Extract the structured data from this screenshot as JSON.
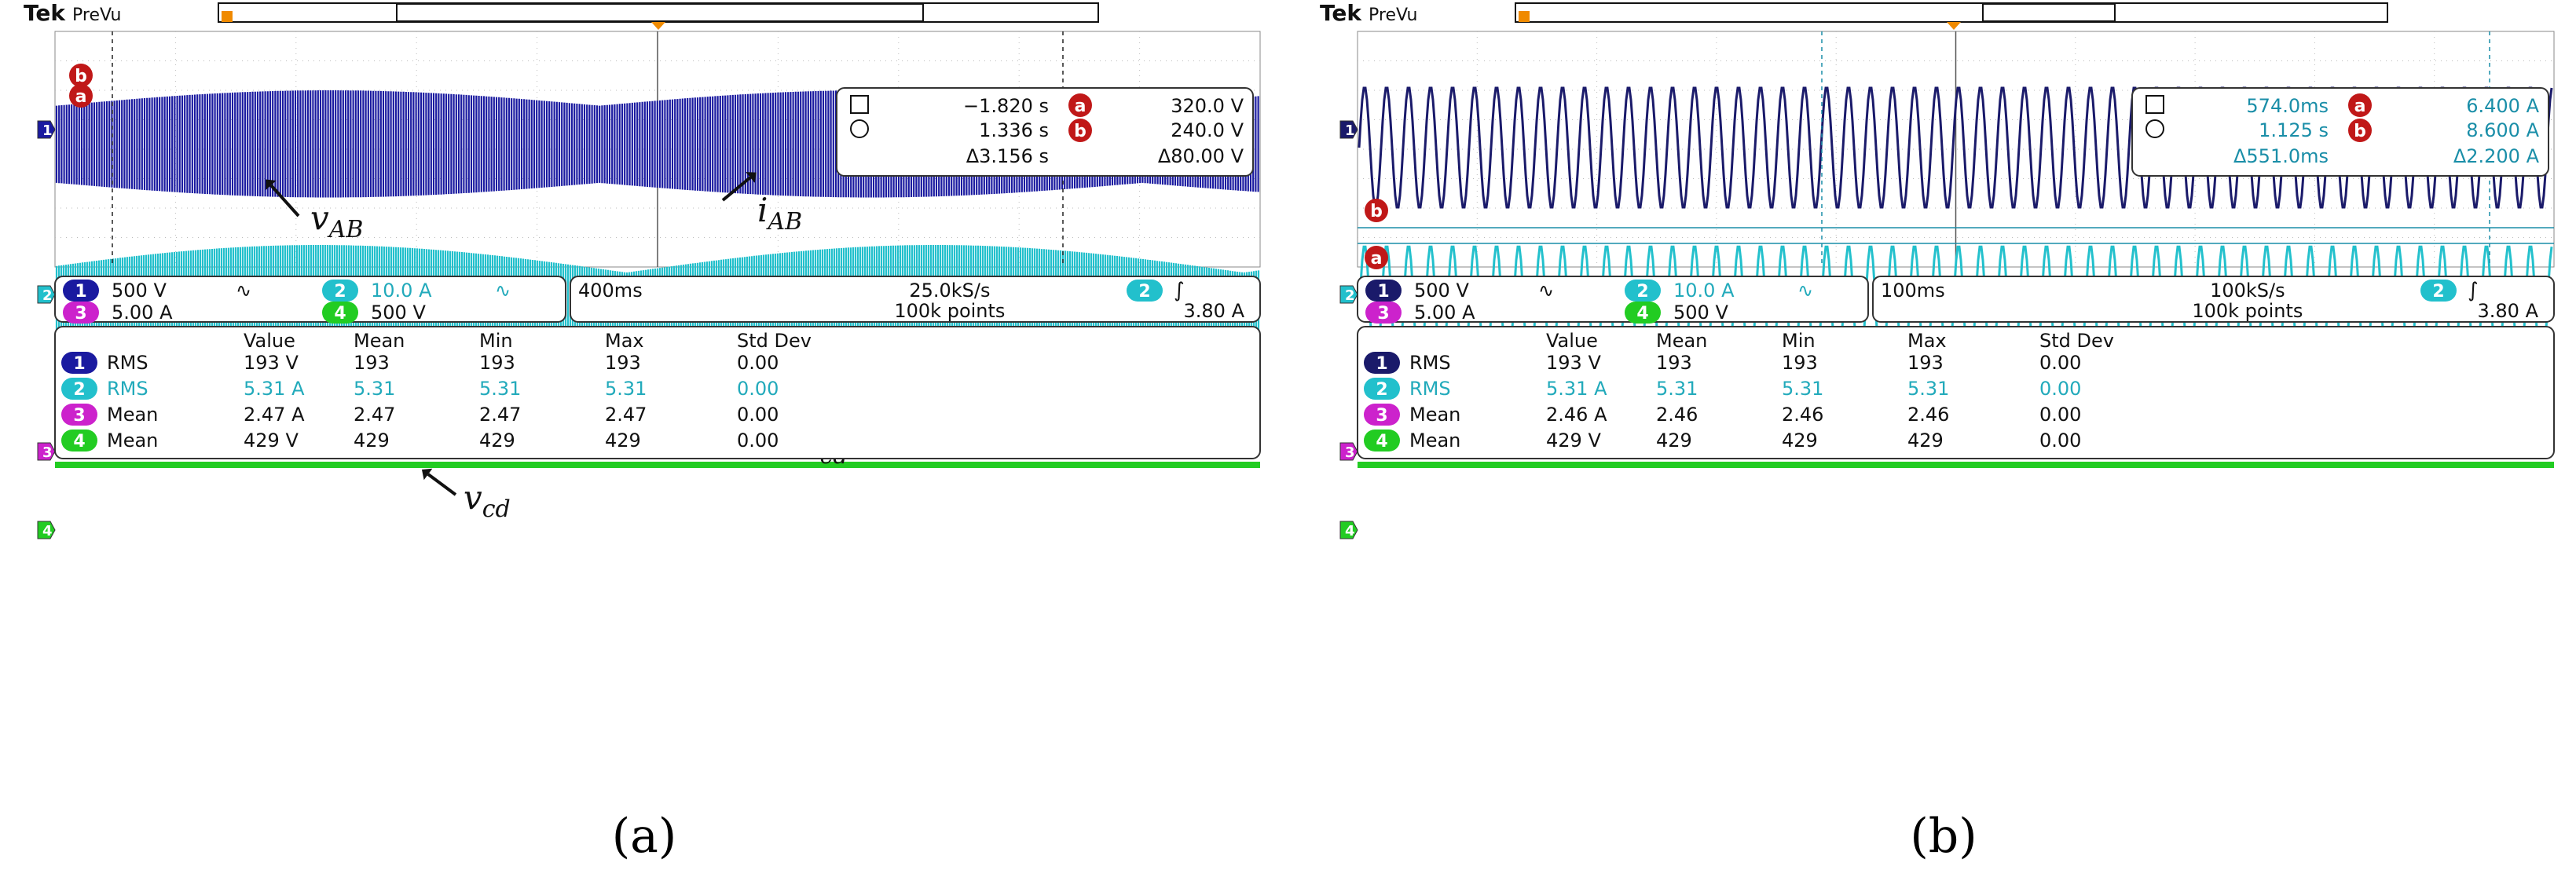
{
  "chart_data": [
    {
      "type": "line",
      "panel_label": "(a)",
      "header": {
        "brand": "Tek",
        "mode": "PreVu"
      },
      "channels": [
        {
          "num": "1",
          "color": "#1a1aa0",
          "label": "v_AB",
          "label_main": "v",
          "label_sub": "AB",
          "signal": "ac-pwm",
          "scale": "500 V",
          "coupling": "∿"
        },
        {
          "num": "2",
          "color": "#22c0cc",
          "label": "i_AB",
          "label_main": "i",
          "label_sub": "AB",
          "signal": "ac",
          "scale": "10.0 A",
          "coupling": "∿"
        },
        {
          "num": "3",
          "color": "#cc22cc",
          "label": "i_cd",
          "label_main": "i",
          "label_sub": "cd",
          "signal": "dc",
          "scale": "5.00 A"
        },
        {
          "num": "4",
          "color": "#22cc22",
          "label": "v_cd",
          "label_main": "v",
          "label_sub": "cd",
          "signal": "dc",
          "scale": "500 V"
        }
      ],
      "timebase": {
        "time_div": "400ms",
        "sample_rate": "25.0kS/s",
        "points": "100k points",
        "trigger_ch": "2",
        "trigger_icon": "∫",
        "trigger_level": "3.80 A"
      },
      "cursors": {
        "a_time": "−1.820 s",
        "b_time": "1.336 s",
        "delta_time": "Δ3.156 s",
        "a_value": "320.0 V",
        "b_value": "240.0 V",
        "delta_value": "Δ80.00 V"
      },
      "measurements": {
        "headers": [
          "Value",
          "Mean",
          "Min",
          "Max",
          "Std Dev"
        ],
        "rows": [
          {
            "ch": "1",
            "type": "RMS",
            "value": "193 V",
            "mean": "193",
            "min": "193",
            "max": "193",
            "std": "0.00"
          },
          {
            "ch": "2",
            "type": "RMS",
            "value": "5.31 A",
            "mean": "5.31",
            "min": "5.31",
            "max": "5.31",
            "std": "0.00"
          },
          {
            "ch": "3",
            "type": "Mean",
            "value": "2.47 A",
            "mean": "2.47",
            "min": "2.47",
            "max": "2.47",
            "std": "0.00"
          },
          {
            "ch": "4",
            "type": "Mean",
            "value": "429 V",
            "mean": "429",
            "min": "429",
            "max": "429",
            "std": "0.00"
          }
        ]
      }
    },
    {
      "type": "line",
      "panel_label": "(b)",
      "header": {
        "brand": "Tek",
        "mode": "PreVu"
      },
      "channels": [
        {
          "num": "1",
          "color": "#1a1a6a",
          "signal": "sine",
          "scale": "500 V",
          "coupling": "∿"
        },
        {
          "num": "2",
          "color": "#22c0cc",
          "signal": "sine",
          "scale": "10.0 A",
          "coupling": "∿"
        },
        {
          "num": "3",
          "color": "#cc22cc",
          "signal": "dc",
          "scale": "5.00 A"
        },
        {
          "num": "4",
          "color": "#22cc22",
          "signal": "dc",
          "scale": "500 V"
        }
      ],
      "timebase": {
        "time_div": "100ms",
        "sample_rate": "100kS/s",
        "points": "100k points",
        "trigger_ch": "2",
        "trigger_icon": "∫",
        "trigger_level": "3.80 A"
      },
      "cursors": {
        "a_time": "574.0ms",
        "b_time": "1.125 s",
        "delta_time": "Δ551.0ms",
        "a_value": "6.400 A",
        "b_value": "8.600 A",
        "delta_value": "Δ2.200 A"
      },
      "measurements": {
        "headers": [
          "Value",
          "Mean",
          "Min",
          "Max",
          "Std Dev"
        ],
        "rows": [
          {
            "ch": "1",
            "type": "RMS",
            "value": "193 V",
            "mean": "193",
            "min": "193",
            "max": "193",
            "std": "0.00"
          },
          {
            "ch": "2",
            "type": "RMS",
            "value": "5.31 A",
            "mean": "5.31",
            "min": "5.31",
            "max": "5.31",
            "std": "0.00"
          },
          {
            "ch": "3",
            "type": "Mean",
            "value": "2.46 A",
            "mean": "2.46",
            "min": "2.46",
            "max": "2.46",
            "std": "0.00"
          },
          {
            "ch": "4",
            "type": "Mean",
            "value": "429 V",
            "mean": "429",
            "min": "429",
            "max": "429",
            "std": "0.00"
          }
        ]
      }
    }
  ]
}
